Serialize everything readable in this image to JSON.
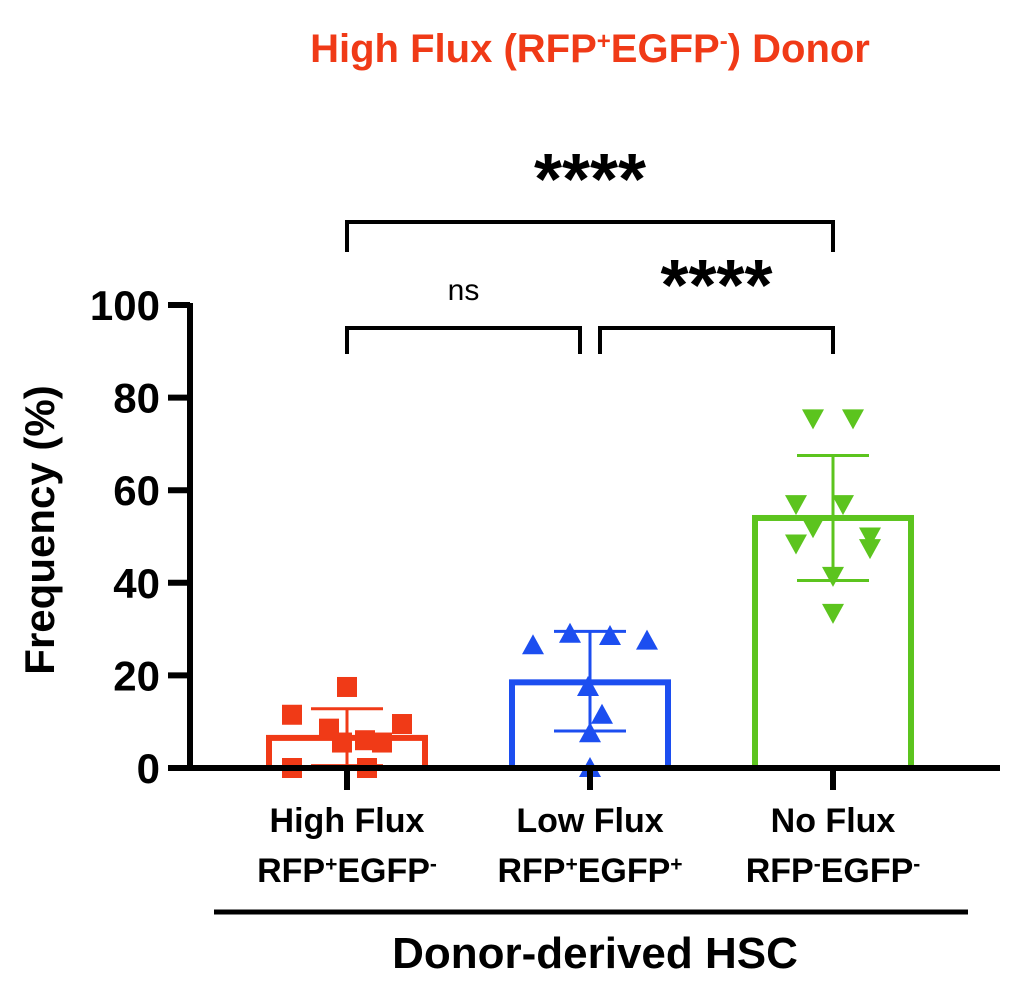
{
  "chart_data": {
    "type": "bar",
    "title": {
      "segments": [
        {
          "text": "High Flux (RFP"
        },
        {
          "text": "+",
          "sup": true
        },
        {
          "text": "EGFP"
        },
        {
          "text": "-",
          "sup": true
        },
        {
          "text": ") Donor"
        }
      ],
      "color": "#f03a17"
    },
    "ylabel": "Frequency (%)",
    "ylim": [
      0,
      100
    ],
    "yticks": [
      "0",
      "20",
      "40",
      "60",
      "80",
      "100"
    ],
    "group_label": "Donor-derived HSC",
    "categories": [
      {
        "line1": "High Flux",
        "line2": [
          {
            "text": "RFP"
          },
          {
            "text": "+",
            "sup": true
          },
          {
            "text": "EGFP"
          },
          {
            "text": "-",
            "sup": true
          }
        ],
        "color": "#f03a17",
        "marker": "square",
        "mean": 6.5,
        "sd_low": 0.5,
        "sd_high": 12.8,
        "points": [
          11.5,
          5.5,
          5.5,
          9.5,
          8.5,
          17.5,
          6.0,
          0,
          0
        ]
      },
      {
        "line1": "Low Flux",
        "line2": [
          {
            "text": "RFP"
          },
          {
            "text": "+",
            "sup": true
          },
          {
            "text": "EGFP"
          },
          {
            "text": "+",
            "sup": true
          }
        ],
        "color": "#1c4ef0",
        "marker": "triangle-up",
        "mean": 18.5,
        "sd_low": 8.0,
        "sd_high": 29.5,
        "points": [
          26.5,
          29.0,
          28.5,
          27.5,
          17.5,
          11.5,
          7.5,
          0
        ]
      },
      {
        "line1": "No Flux",
        "line2": [
          {
            "text": "RFP"
          },
          {
            "text": "-",
            "sup": true
          },
          {
            "text": "EGFP"
          },
          {
            "text": "-",
            "sup": true
          }
        ],
        "color": "#5cc41e",
        "marker": "triangle-down",
        "mean": 54.0,
        "sd_low": 40.5,
        "sd_high": 67.5,
        "points": [
          75.5,
          75.5,
          57.0,
          57.0,
          52.0,
          50.0,
          48.5,
          47.5,
          41.5,
          33.5
        ]
      }
    ],
    "comparisons": [
      {
        "from": 0,
        "to": 1,
        "label": "ns"
      },
      {
        "from": 1,
        "to": 2,
        "label": "****"
      },
      {
        "from": 0,
        "to": 2,
        "label": "****"
      }
    ]
  }
}
